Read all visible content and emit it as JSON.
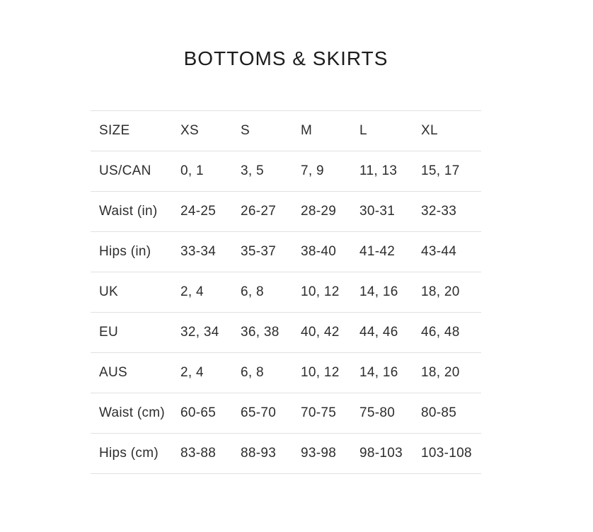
{
  "page": {
    "title": "BOTTOMS & SKIRTS"
  },
  "colors": {
    "background": "#ffffff",
    "title_text": "#1c1c1c",
    "table_text": "#2d2d2d",
    "divider": "#e1e1e1"
  },
  "table": {
    "columns": [
      "SIZE",
      "XS",
      "S",
      "M",
      "L",
      "XL"
    ],
    "rows": [
      {
        "label": "US/CAN",
        "values": [
          "0, 1",
          "3, 5",
          "7, 9",
          "11, 13",
          "15, 17"
        ]
      },
      {
        "label": "Waist (in)",
        "values": [
          "24-25",
          "26-27",
          "28-29",
          "30-31",
          "32-33"
        ]
      },
      {
        "label": "Hips (in)",
        "values": [
          "33-34",
          "35-37",
          "38-40",
          "41-42",
          "43-44"
        ]
      },
      {
        "label": "UK",
        "values": [
          "2, 4",
          "6, 8",
          "10, 12",
          "14, 16",
          "18, 20"
        ]
      },
      {
        "label": "EU",
        "values": [
          "32, 34",
          "36, 38",
          "40, 42",
          "44, 46",
          "46, 48"
        ]
      },
      {
        "label": "AUS",
        "values": [
          "2, 4",
          "6, 8",
          "10, 12",
          "14, 16",
          "18, 20"
        ]
      },
      {
        "label": "Waist (cm)",
        "values": [
          "60-65",
          "65-70",
          "70-75",
          "75-80",
          "80-85"
        ]
      },
      {
        "label": "Hips (cm)",
        "values": [
          "83-88",
          "88-93",
          "93-98",
          "98-103",
          "103-108"
        ]
      }
    ]
  }
}
